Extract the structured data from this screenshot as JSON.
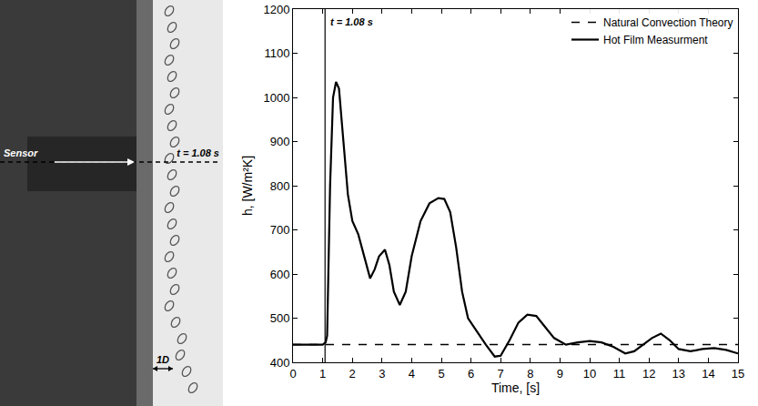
{
  "chart_data": {
    "type": "line",
    "xlabel": "Time, [s]",
    "ylabel": "h, [W/m²K]",
    "xlim": [
      0,
      15
    ],
    "ylim": [
      400,
      1200
    ],
    "xticks": [
      0,
      1,
      2,
      3,
      4,
      5,
      6,
      7,
      8,
      9,
      10,
      11,
      12,
      13,
      14,
      15
    ],
    "yticks": [
      400,
      500,
      600,
      700,
      800,
      900,
      1000,
      1100,
      1200
    ],
    "grid": false,
    "legend": "top right",
    "annotations": [
      {
        "text": "t = 1.08 s",
        "x": 1.08
      }
    ],
    "series": [
      {
        "name": "Natural Convection Theory",
        "color": "#000000",
        "line_style": "dashed",
        "x": [
          0,
          15
        ],
        "values": [
          440,
          440
        ]
      },
      {
        "name": "Hot Film Measurment",
        "color": "#000000",
        "line_style": "solid",
        "x": [
          0,
          0.5,
          1.0,
          1.1,
          1.15,
          1.25,
          1.35,
          1.45,
          1.55,
          1.7,
          1.85,
          2.0,
          2.2,
          2.4,
          2.6,
          2.75,
          2.9,
          3.1,
          3.25,
          3.4,
          3.6,
          3.8,
          4.0,
          4.3,
          4.6,
          4.9,
          5.1,
          5.3,
          5.5,
          5.7,
          5.9,
          6.2,
          6.5,
          6.8,
          7.0,
          7.3,
          7.6,
          7.9,
          8.2,
          8.5,
          8.8,
          9.2,
          9.6,
          10.0,
          10.4,
          10.8,
          11.2,
          11.5,
          11.8,
          12.1,
          12.4,
          12.7,
          13.0,
          13.4,
          13.8,
          14.2,
          14.6,
          15.0
        ],
        "values": [
          440,
          440,
          440,
          445,
          460,
          800,
          1000,
          1035,
          1020,
          900,
          780,
          720,
          690,
          640,
          590,
          610,
          640,
          655,
          620,
          560,
          530,
          560,
          640,
          720,
          760,
          772,
          770,
          740,
          660,
          560,
          500,
          470,
          440,
          413,
          415,
          450,
          490,
          508,
          505,
          480,
          455,
          440,
          445,
          448,
          445,
          435,
          420,
          425,
          440,
          455,
          465,
          450,
          430,
          425,
          430,
          432,
          428,
          420
        ]
      }
    ]
  },
  "image_panel": {
    "labels": [
      "Sensor",
      "t = 1.08 s",
      "1D"
    ]
  }
}
